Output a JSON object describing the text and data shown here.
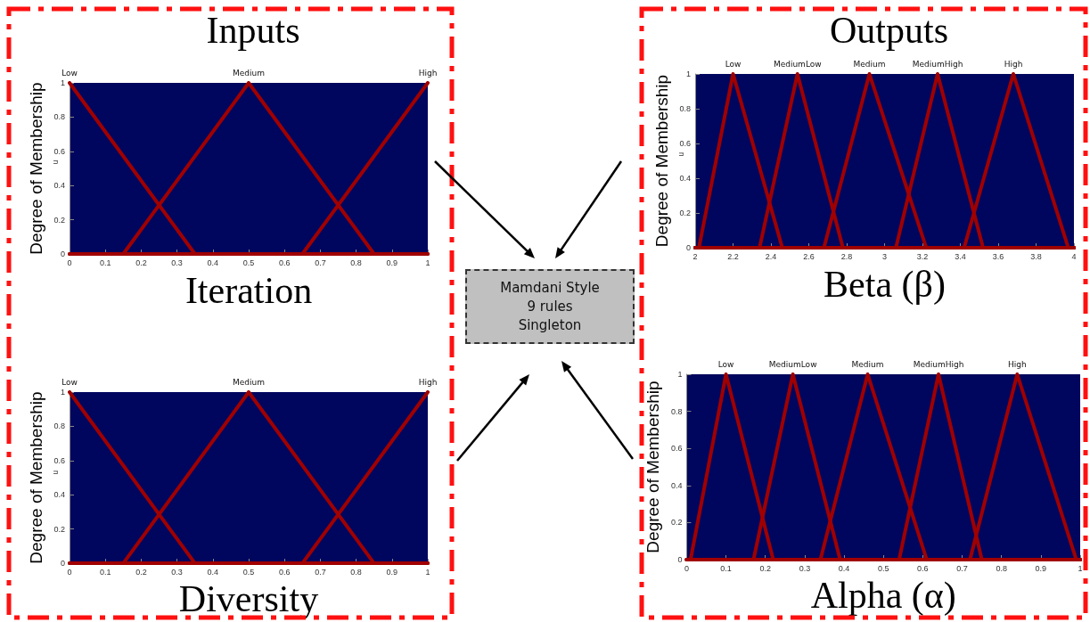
{
  "chart_data": [
    {
      "type": "line",
      "title": "Inputs",
      "xlabel": "Iteration",
      "ylabel": "Degree of Membership",
      "annotations": [
        "u"
      ],
      "xlim": [
        0,
        1
      ],
      "xticks": [
        0,
        0.1,
        0.2,
        0.3,
        0.4,
        0.5,
        0.6,
        0.7,
        0.8,
        0.9,
        1
      ],
      "ylim": [
        0,
        1
      ],
      "yticks": [
        0,
        0.2,
        0.4,
        0.6,
        0.8,
        1
      ],
      "grid": false,
      "legend": false,
      "marker": "none",
      "line_style": "solid",
      "series": [
        {
          "name": "Low",
          "color": "#a00000",
          "x": [
            0,
            0.35,
            1
          ],
          "values": [
            1,
            0,
            0
          ]
        },
        {
          "name": "Medium",
          "color": "#a00000",
          "x": [
            0,
            0.15,
            0.5,
            0.85,
            1
          ],
          "values": [
            0,
            0,
            1,
            0,
            0
          ]
        },
        {
          "name": "High",
          "color": "#a00000",
          "x": [
            0,
            0.65,
            1
          ],
          "values": [
            0,
            0,
            1
          ]
        }
      ]
    },
    {
      "type": "line",
      "xlabel": "Diversity",
      "ylabel": "Degree of Membership",
      "annotations": [
        "u"
      ],
      "xlim": [
        0,
        1
      ],
      "xticks": [
        0,
        0.1,
        0.2,
        0.3,
        0.4,
        0.5,
        0.6,
        0.7,
        0.8,
        0.9,
        1
      ],
      "ylim": [
        0,
        1
      ],
      "yticks": [
        0,
        0.2,
        0.4,
        0.6,
        0.8,
        1
      ],
      "grid": false,
      "legend": false,
      "marker": "none",
      "line_style": "solid",
      "series": [
        {
          "name": "Low",
          "color": "#a00000",
          "x": [
            0,
            0.35,
            1
          ],
          "values": [
            1,
            0,
            0
          ]
        },
        {
          "name": "Medium",
          "color": "#a00000",
          "x": [
            0,
            0.15,
            0.5,
            0.85,
            1
          ],
          "values": [
            0,
            0,
            1,
            0,
            0
          ]
        },
        {
          "name": "High",
          "color": "#a00000",
          "x": [
            0,
            0.65,
            1
          ],
          "values": [
            0,
            0,
            1
          ]
        }
      ]
    },
    {
      "type": "line",
      "title": "Outputs",
      "xlabel": "Beta (β)",
      "ylabel": "Degree of Membership",
      "annotations": [
        "u"
      ],
      "xlim": [
        2,
        4
      ],
      "xticks": [
        2,
        2.2,
        2.4,
        2.6,
        2.8,
        3,
        3.2,
        3.4,
        3.6,
        3.8,
        4
      ],
      "ylim": [
        0,
        1
      ],
      "yticks": [
        0,
        0.2,
        0.4,
        0.6,
        0.8,
        1
      ],
      "grid": false,
      "legend": false,
      "marker": "none",
      "line_style": "solid",
      "series": [
        {
          "name": "Low",
          "color": "#a00000",
          "x": [
            2,
            2.02,
            2.2,
            2.46,
            4
          ],
          "values": [
            0,
            0,
            1,
            0,
            0
          ]
        },
        {
          "name": "MediumLow",
          "color": "#a00000",
          "x": [
            2,
            2.34,
            2.54,
            2.78,
            4
          ],
          "values": [
            0,
            0,
            1,
            0,
            0
          ]
        },
        {
          "name": "Medium",
          "color": "#a00000",
          "x": [
            2,
            2.68,
            2.92,
            3.22,
            4
          ],
          "values": [
            0,
            0,
            1,
            0,
            0
          ]
        },
        {
          "name": "MediumHigh",
          "color": "#a00000",
          "x": [
            2,
            3.06,
            3.28,
            3.52,
            4
          ],
          "values": [
            0,
            0,
            1,
            0,
            0
          ]
        },
        {
          "name": "High",
          "color": "#a00000",
          "x": [
            2,
            3.42,
            3.68,
            3.97,
            4
          ],
          "values": [
            0,
            0,
            1,
            0,
            0
          ]
        }
      ]
    },
    {
      "type": "line",
      "xlabel": "Alpha (α)",
      "ylabel": "Degree of Membership",
      "xlim": [
        0,
        1
      ],
      "xticks": [
        0,
        0.1,
        0.2,
        0.3,
        0.4,
        0.5,
        0.6,
        0.7,
        0.8,
        0.9,
        1
      ],
      "ylim": [
        0,
        1
      ],
      "yticks": [
        0,
        0.2,
        0.4,
        0.6,
        0.8,
        1
      ],
      "grid": false,
      "legend": false,
      "marker": "none",
      "line_style": "solid",
      "series": [
        {
          "name": "Low",
          "color": "#a00000",
          "x": [
            0,
            0.01,
            0.1,
            0.22,
            1
          ],
          "values": [
            0,
            0,
            1,
            0,
            0
          ]
        },
        {
          "name": "MediumLow",
          "color": "#a00000",
          "x": [
            0,
            0.17,
            0.27,
            0.39,
            1
          ],
          "values": [
            0,
            0,
            1,
            0,
            0
          ]
        },
        {
          "name": "Medium",
          "color": "#a00000",
          "x": [
            0,
            0.34,
            0.46,
            0.61,
            1
          ],
          "values": [
            0,
            0,
            1,
            0,
            0
          ]
        },
        {
          "name": "MediumHigh",
          "color": "#a00000",
          "x": [
            0,
            0.54,
            0.64,
            0.75,
            1
          ],
          "values": [
            0,
            0,
            1,
            0,
            0
          ]
        },
        {
          "name": "High",
          "color": "#a00000",
          "x": [
            0,
            0.72,
            0.84,
            0.99,
            1
          ],
          "values": [
            0,
            0,
            1,
            0,
            0
          ]
        }
      ]
    },
    {
      "type": "other",
      "annotations": [
        "Mamdani Style",
        "9 rules",
        "Singleton"
      ]
    }
  ]
}
